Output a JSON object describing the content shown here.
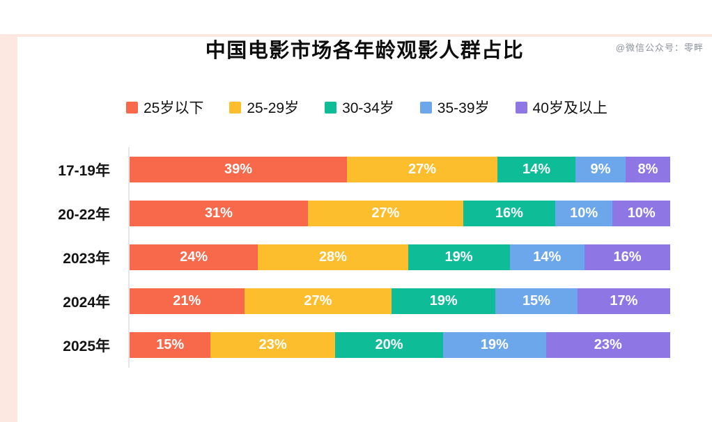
{
  "watermark": "@微信公众号：零畔",
  "title": "中国电影市场各年龄观影人群占比",
  "colors": {
    "under25": "#F8684B",
    "age25_29": "#FCBE2D",
    "age30_34": "#0EBD98",
    "age35_39": "#6CA7EB",
    "age40_plus": "#8E77E4",
    "frame_pink": "#FCE8E0",
    "axis_gray": "#E6E6E6"
  },
  "chart_data": {
    "type": "bar",
    "orientation": "horizontal-stacked",
    "title": "中国电影市场各年龄观影人群占比",
    "categories": [
      "17-19年",
      "20-22年",
      "2023年",
      "2024年",
      "2025年"
    ],
    "series": [
      {
        "name": "25岁以下",
        "color": "#F8684B",
        "values": [
          39,
          31,
          24,
          21,
          15
        ]
      },
      {
        "name": "25-29岁",
        "color": "#FCBE2D",
        "values": [
          27,
          27,
          28,
          27,
          23
        ]
      },
      {
        "name": "30-34岁",
        "color": "#0EBD98",
        "values": [
          14,
          16,
          19,
          19,
          20
        ]
      },
      {
        "name": "35-39岁",
        "color": "#6CA7EB",
        "values": [
          9,
          10,
          14,
          15,
          19
        ]
      },
      {
        "name": "40岁及以上",
        "color": "#8E77E4",
        "values": [
          8,
          10,
          16,
          17,
          23
        ]
      }
    ],
    "value_suffix": "%",
    "legend_position": "top",
    "xlabel": "",
    "ylabel": "",
    "grid": false,
    "bars_normalized_to_full_width": true
  }
}
